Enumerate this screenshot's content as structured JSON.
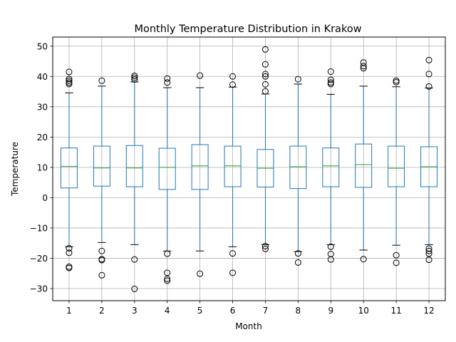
{
  "chart_data": {
    "type": "box",
    "title": "Monthly Temperature Distribution in Krakow",
    "xlabel": "Month",
    "ylabel": "Temperature",
    "categories": [
      "1",
      "2",
      "3",
      "4",
      "5",
      "6",
      "7",
      "8",
      "9",
      "10",
      "11",
      "12"
    ],
    "ylim": [
      -34,
      53
    ],
    "yticks": [
      -30,
      -20,
      -10,
      0,
      10,
      20,
      30,
      40,
      50
    ],
    "ytick_labels": [
      "−30",
      "−20",
      "−10",
      "0",
      "10",
      "20",
      "30",
      "40",
      "50"
    ],
    "grid": true,
    "box_color": "#1f77b4",
    "median_color": "#2ca02c",
    "boxes": [
      {
        "category": "1",
        "whisker_low": -16.2,
        "q1": 3.2,
        "median": 10.3,
        "q3": 16.4,
        "whisker_high": 34.6,
        "outliers": [
          41.5,
          39.2,
          38.6,
          38.0,
          37.5,
          -16.7,
          -18.2,
          -22.8,
          -23.2
        ]
      },
      {
        "category": "2",
        "whisker_low": -14.8,
        "q1": 3.8,
        "median": 9.8,
        "q3": 17.0,
        "whisker_high": 36.8,
        "outliers": [
          38.6,
          -17.6,
          -20.3,
          -20.6,
          -25.6
        ]
      },
      {
        "category": "3",
        "whisker_low": -15.5,
        "q1": 3.6,
        "median": 9.8,
        "q3": 17.2,
        "whisker_high": 38.2,
        "outliers": [
          40.2,
          39.6,
          39.0,
          -20.4,
          -30.1
        ]
      },
      {
        "category": "4",
        "whisker_low": -17.6,
        "q1": 2.7,
        "median": 10.0,
        "q3": 16.3,
        "whisker_high": 36.3,
        "outliers": [
          39.3,
          38.0,
          -18.5,
          -24.8,
          -26.8,
          -27.4
        ]
      },
      {
        "category": "5",
        "whisker_low": -17.6,
        "q1": 2.7,
        "median": 10.5,
        "q3": 17.5,
        "whisker_high": 36.3,
        "outliers": [
          40.3,
          -25.1
        ]
      },
      {
        "category": "6",
        "whisker_low": -16.2,
        "q1": 3.6,
        "median": 10.5,
        "q3": 17.0,
        "whisker_high": 36.5,
        "outliers": [
          40.0,
          37.3,
          -18.4,
          -24.8
        ]
      },
      {
        "category": "7",
        "whisker_low": -15.5,
        "q1": 3.5,
        "median": 9.7,
        "q3": 15.9,
        "whisker_high": 34.2,
        "outliers": [
          48.9,
          44.0,
          40.8,
          40.0,
          37.4,
          35.1,
          -16.0,
          -16.9
        ]
      },
      {
        "category": "8",
        "whisker_low": -17.8,
        "q1": 3.0,
        "median": 10.2,
        "q3": 17.0,
        "whisker_high": 37.5,
        "outliers": [
          39.1,
          -18.4,
          -21.4
        ]
      },
      {
        "category": "9",
        "whisker_low": -15.5,
        "q1": 3.6,
        "median": 10.5,
        "q3": 16.4,
        "whisker_high": 34.1,
        "outliers": [
          41.6,
          38.9,
          38.0,
          37.5,
          -16.2,
          -18.6,
          -20.4
        ]
      },
      {
        "category": "10",
        "whisker_low": -17.3,
        "q1": 3.4,
        "median": 10.9,
        "q3": 17.7,
        "whisker_high": 36.8,
        "outliers": [
          44.6,
          43.4,
          42.7,
          -20.3
        ]
      },
      {
        "category": "11",
        "whisker_low": -15.7,
        "q1": 3.6,
        "median": 9.7,
        "q3": 17.0,
        "whisker_high": 36.6,
        "outliers": [
          38.6,
          38.1,
          -19.0,
          -21.5
        ]
      },
      {
        "category": "12",
        "whisker_low": -15.5,
        "q1": 3.6,
        "median": 10.2,
        "q3": 16.8,
        "whisker_high": 36.2,
        "outliers": [
          45.4,
          40.8,
          36.7,
          -16.8,
          -17.6,
          -18.5,
          -20.5
        ]
      }
    ]
  }
}
